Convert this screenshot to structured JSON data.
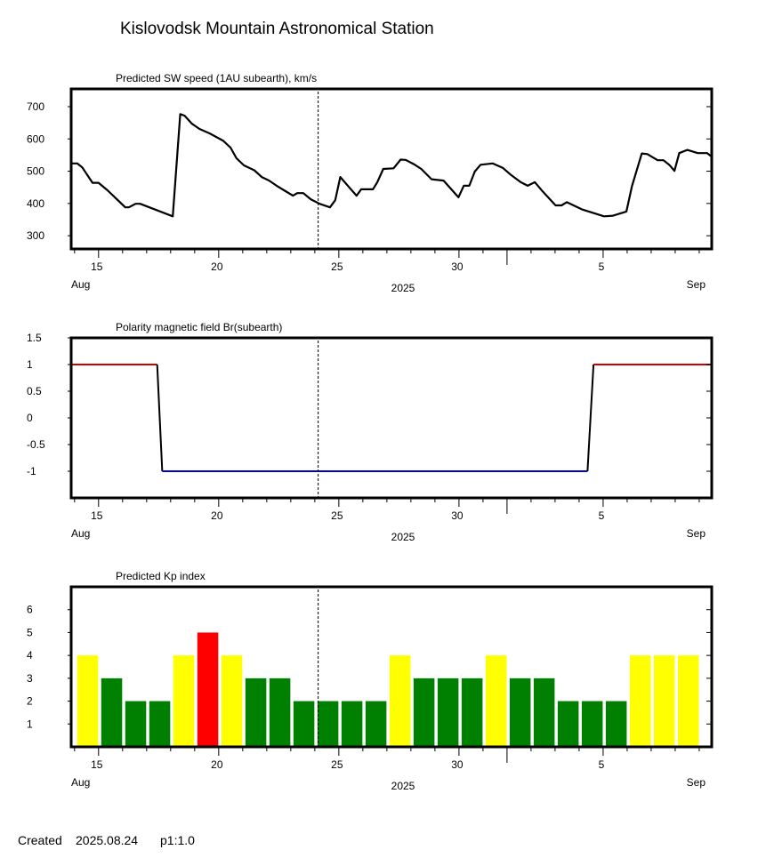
{
  "page_title": "Kislovodsk Mountain Astronomical Station",
  "footer": {
    "created_label": "Created",
    "created_date": "2025.08.24",
    "page_scale": "p1:1.0"
  },
  "axis_common": {
    "x_aug_day_range": [
      13.86,
      40.52
    ],
    "day_ticks": [
      {
        "day": 15,
        "label": "15"
      },
      {
        "day": 20,
        "label": "20"
      },
      {
        "day": 25,
        "label": "25"
      },
      {
        "day": 30,
        "label": "30"
      },
      {
        "day": 36,
        "label": "5"
      }
    ],
    "month_start_label": "Aug",
    "year_label": "2025",
    "month_end_label": "Sep",
    "month_boundary_day": 32,
    "current_time_day": 24.14
  },
  "chart_data": [
    {
      "type": "line",
      "title": "Predicted SW speed (1AU subearth), km/s",
      "xlabel": "2025",
      "ylabel": "",
      "ylim": [
        259,
        755
      ],
      "yticks": [
        300,
        400,
        500,
        600,
        700
      ],
      "grid": false,
      "color": "#000000",
      "x": [
        13.91,
        14.11,
        14.32,
        14.75,
        15.0,
        15.37,
        16.11,
        16.26,
        16.54,
        16.73,
        18.09,
        18.4,
        18.58,
        18.89,
        19.2,
        19.63,
        20.19,
        20.49,
        20.74,
        21.05,
        21.48,
        21.79,
        22.1,
        22.41,
        22.78,
        23.09,
        23.27,
        23.52,
        23.83,
        24.2,
        24.63,
        24.85,
        25.06,
        25.43,
        25.74,
        25.93,
        26.42,
        26.6,
        26.85,
        27.28,
        27.57,
        27.78,
        28.12,
        28.43,
        28.86,
        29.36,
        29.98,
        30.2,
        30.43,
        30.66,
        30.9,
        31.4,
        31.83,
        32.14,
        32.57,
        32.86,
        33.16,
        33.5,
        34.02,
        34.27,
        34.49,
        35.11,
        36.04,
        36.41,
        36.97,
        37.2,
        37.61,
        37.84,
        38.27,
        38.51,
        38.76,
        38.97,
        39.17,
        39.5,
        39.94,
        40.33,
        40.52
      ],
      "values": [
        524,
        524,
        512,
        464,
        464,
        441,
        388,
        388,
        399,
        399,
        360,
        677,
        672,
        647,
        631,
        617,
        594,
        573,
        540,
        518,
        503,
        482,
        471,
        455,
        438,
        424,
        432,
        432,
        413,
        399,
        388,
        410,
        482,
        450,
        424,
        444,
        444,
        466,
        507,
        509,
        536,
        535,
        522,
        507,
        475,
        471,
        419,
        455,
        455,
        499,
        520,
        524,
        510,
        490,
        466,
        455,
        466,
        436,
        394,
        394,
        404,
        382,
        360,
        362,
        375,
        453,
        555,
        553,
        534,
        534,
        519,
        501,
        556,
        566,
        556,
        556,
        545
      ]
    },
    {
      "type": "line",
      "title": "Polarity magnetic field  Br(subearth)",
      "xlabel": "2025",
      "ylabel": "",
      "ylim": [
        -1.5,
        1.5
      ],
      "yticks": [
        {
          "v": 1.5,
          "label": "1.5"
        },
        {
          "v": 1,
          "label": "1"
        },
        {
          "v": 0.5,
          "label": "0.5"
        },
        {
          "v": 0,
          "label": "0"
        },
        {
          "v": -0.5,
          "label": "-0.5"
        },
        {
          "v": -1,
          "label": "-1"
        }
      ],
      "grid": false,
      "positive_color": "#cc0000",
      "negative_color": "#0000cc",
      "transition_color": "#000000",
      "x": [
        13.86,
        17.44,
        17.65,
        35.35,
        35.6,
        40.52
      ],
      "values": [
        1,
        1,
        -1,
        -1,
        1,
        1
      ]
    },
    {
      "type": "bar",
      "title": "Predicted Kp index",
      "xlabel": "2025",
      "ylabel": "",
      "ylim": [
        0,
        7
      ],
      "yticks": [
        1,
        2,
        3,
        4,
        5,
        6
      ],
      "grid": false,
      "colors": {
        "quiet": "#008000",
        "active": "#ffff00",
        "storm": "#ff0000"
      },
      "bar_start_day": 14,
      "values": [
        4,
        3,
        2,
        2,
        4,
        5,
        4,
        3,
        3,
        2,
        2,
        2,
        2,
        4,
        3,
        3,
        3,
        4,
        3,
        3,
        2,
        2,
        2,
        4,
        4,
        4
      ]
    }
  ]
}
